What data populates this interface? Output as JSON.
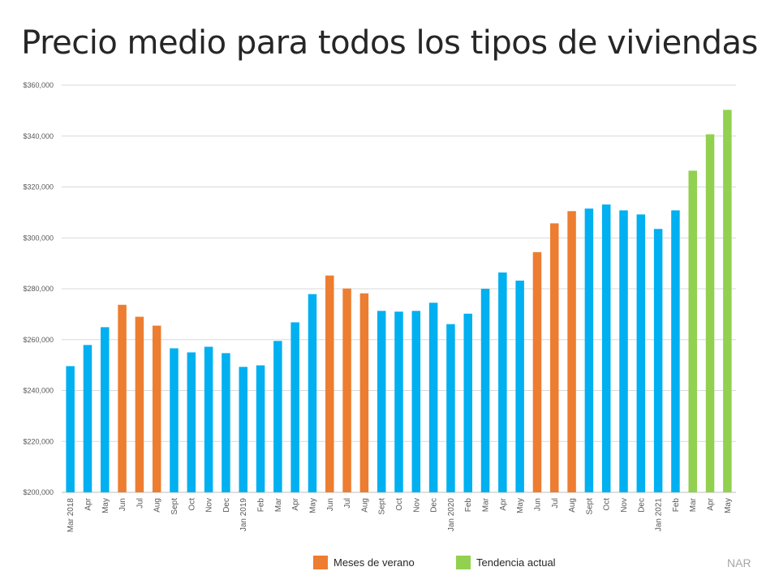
{
  "chart_data": {
    "type": "bar",
    "title": "Precio medio para todos los tipos de viviendas",
    "xlabel": "",
    "ylabel": "",
    "ylim": [
      200000,
      360000
    ],
    "yticks": [
      200000,
      220000,
      240000,
      260000,
      280000,
      300000,
      320000,
      340000,
      360000
    ],
    "ytick_labels": [
      "$200,000",
      "$220,000",
      "$240,000",
      "$260,000",
      "$280,000",
      "$300,000",
      "$320,000",
      "$340,000",
      "$360,000"
    ],
    "grid": true,
    "legend_position": "bottom",
    "categories": [
      "Mar 2018",
      "Apr",
      "May",
      "Jun",
      "Jul",
      "Aug",
      "Sept",
      "Oct",
      "Nov",
      "Dec",
      "Jan 2019",
      "Feb",
      "Mar",
      "Apr",
      "May",
      "Jun",
      "Jul",
      "Aug",
      "Sept",
      "Oct",
      "Nov",
      "Dec",
      "Jan 2020",
      "Feb",
      "Mar",
      "Apr",
      "May",
      "Jun",
      "Jul",
      "Aug",
      "Sept",
      "Oct",
      "Nov",
      "Dec",
      "Jan 2021",
      "Feb",
      "Mar",
      "Apr",
      "May"
    ],
    "values": [
      249600,
      257900,
      264900,
      273700,
      269000,
      265500,
      256600,
      255000,
      257200,
      254700,
      249300,
      249900,
      259500,
      266800,
      277900,
      285200,
      280100,
      278200,
      271300,
      271000,
      271300,
      274500,
      266100,
      270200,
      280000,
      286400,
      283200,
      294400,
      305700,
      310500,
      311500,
      313100,
      310800,
      309200,
      303500,
      310800,
      326400,
      340700,
      350300
    ],
    "groups": [
      "base",
      "base",
      "base",
      "summer",
      "summer",
      "summer",
      "base",
      "base",
      "base",
      "base",
      "base",
      "base",
      "base",
      "base",
      "base",
      "summer",
      "summer",
      "summer",
      "base",
      "base",
      "base",
      "base",
      "base",
      "base",
      "base",
      "base",
      "base",
      "summer",
      "summer",
      "summer",
      "base",
      "base",
      "base",
      "base",
      "base",
      "base",
      "trend",
      "trend",
      "trend"
    ],
    "colors": {
      "base": "#00B0F0",
      "summer": "#ED7D31",
      "trend": "#92D050"
    },
    "legend": [
      {
        "group": "summer",
        "label": "Meses de verano"
      },
      {
        "group": "trend",
        "label": "Tendencia actual"
      }
    ],
    "source": "NAR"
  }
}
